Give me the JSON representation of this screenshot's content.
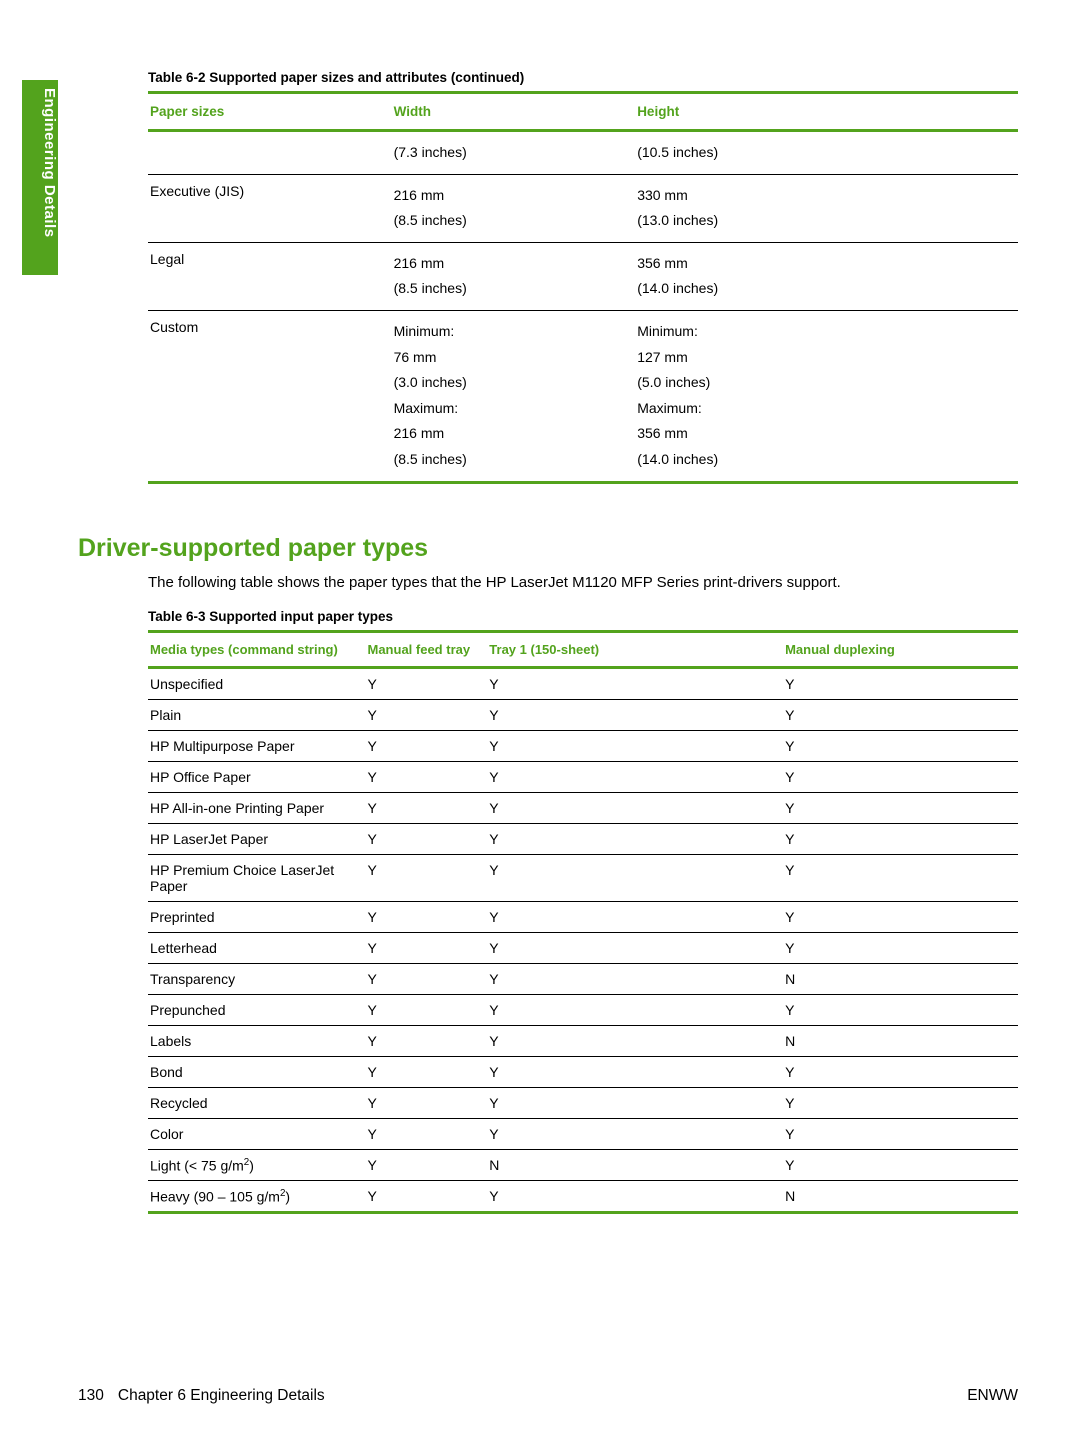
{
  "colors": {
    "accent": "#53a31d",
    "text": "#000000",
    "background": "#ffffff"
  },
  "side_tab": {
    "label": "Engineering Details"
  },
  "table62": {
    "caption": "Table 6-2  Supported paper sizes and attributes (continued)",
    "headers": {
      "c1": "Paper sizes",
      "c2": "Width",
      "c3": "Height"
    },
    "rows": [
      {
        "label": "",
        "width": [
          "(7.3 inches)"
        ],
        "height": [
          "(10.5 inches)"
        ],
        "section_top": false
      },
      {
        "label": "Executive (JIS)",
        "width": [
          "216 mm",
          "(8.5 inches)"
        ],
        "height": [
          "330 mm",
          "(13.0 inches)"
        ],
        "section_top": true
      },
      {
        "label": "Legal",
        "width": [
          "216 mm",
          "(8.5 inches)"
        ],
        "height": [
          "356 mm",
          "(14.0 inches)"
        ],
        "section_top": true
      },
      {
        "label": "Custom",
        "width": [
          "Minimum:",
          "76 mm",
          "(3.0 inches)",
          "Maximum:",
          "216 mm",
          "(8.5 inches)"
        ],
        "height": [
          "Minimum:",
          "127 mm",
          "(5.0 inches)",
          "Maximum:",
          "356 mm",
          "(14.0 inches)"
        ],
        "section_top": true
      }
    ]
  },
  "section": {
    "heading": "Driver-supported paper types",
    "paragraph": "The following table shows the paper types that the HP LaserJet M1120 MFP Series print-drivers support."
  },
  "table63": {
    "caption": "Table 6-3  Supported input paper types",
    "headers": {
      "c1": "Media types (command string)",
      "c2": "Manual feed tray",
      "c3": "Tray 1 (150-sheet)",
      "c4": "Manual duplexing"
    },
    "rows": [
      {
        "name": "Unspecified",
        "html": "Unspecified",
        "v": [
          "Y",
          "Y",
          "Y"
        ]
      },
      {
        "name": "Plain",
        "html": "Plain",
        "v": [
          "Y",
          "Y",
          "Y"
        ]
      },
      {
        "name": "HP Multipurpose Paper",
        "html": "HP Multipurpose Paper",
        "v": [
          "Y",
          "Y",
          "Y"
        ]
      },
      {
        "name": "HP Office Paper",
        "html": "HP Office Paper",
        "v": [
          "Y",
          "Y",
          "Y"
        ]
      },
      {
        "name": "HP All-in-one Printing Paper",
        "html": "HP All-in-one Printing Paper",
        "v": [
          "Y",
          "Y",
          "Y"
        ]
      },
      {
        "name": "HP LaserJet Paper",
        "html": "HP LaserJet Paper",
        "v": [
          "Y",
          "Y",
          "Y"
        ]
      },
      {
        "name": "HP Premium Choice LaserJet Paper",
        "html": "HP Premium Choice LaserJet Paper",
        "v": [
          "Y",
          "Y",
          "Y"
        ]
      },
      {
        "name": "Preprinted",
        "html": "Preprinted",
        "v": [
          "Y",
          "Y",
          "Y"
        ]
      },
      {
        "name": "Letterhead",
        "html": "Letterhead",
        "v": [
          "Y",
          "Y",
          "Y"
        ]
      },
      {
        "name": "Transparency",
        "html": "Transparency",
        "v": [
          "Y",
          "Y",
          "N"
        ]
      },
      {
        "name": "Prepunched",
        "html": "Prepunched",
        "v": [
          "Y",
          "Y",
          "Y"
        ]
      },
      {
        "name": "Labels",
        "html": "Labels",
        "v": [
          "Y",
          "Y",
          "N"
        ]
      },
      {
        "name": "Bond",
        "html": "Bond",
        "v": [
          "Y",
          "Y",
          "Y"
        ]
      },
      {
        "name": "Recycled",
        "html": "Recycled",
        "v": [
          "Y",
          "Y",
          "Y"
        ]
      },
      {
        "name": "Color",
        "html": "Color",
        "v": [
          "Y",
          "Y",
          "Y"
        ]
      },
      {
        "name": "Light (< 75 g/m2)",
        "html": "Light (< 75 g/m<sup>2</sup>)",
        "v": [
          "Y",
          "N",
          "Y"
        ]
      },
      {
        "name": "Heavy (90 – 105 g/m2)",
        "html": "Heavy (90 – 105 g/m<sup>2</sup>)",
        "v": [
          "Y",
          "Y",
          "N"
        ]
      }
    ]
  },
  "footer": {
    "page_number": "130",
    "chapter": "Chapter 6   Engineering Details",
    "right": "ENWW"
  }
}
